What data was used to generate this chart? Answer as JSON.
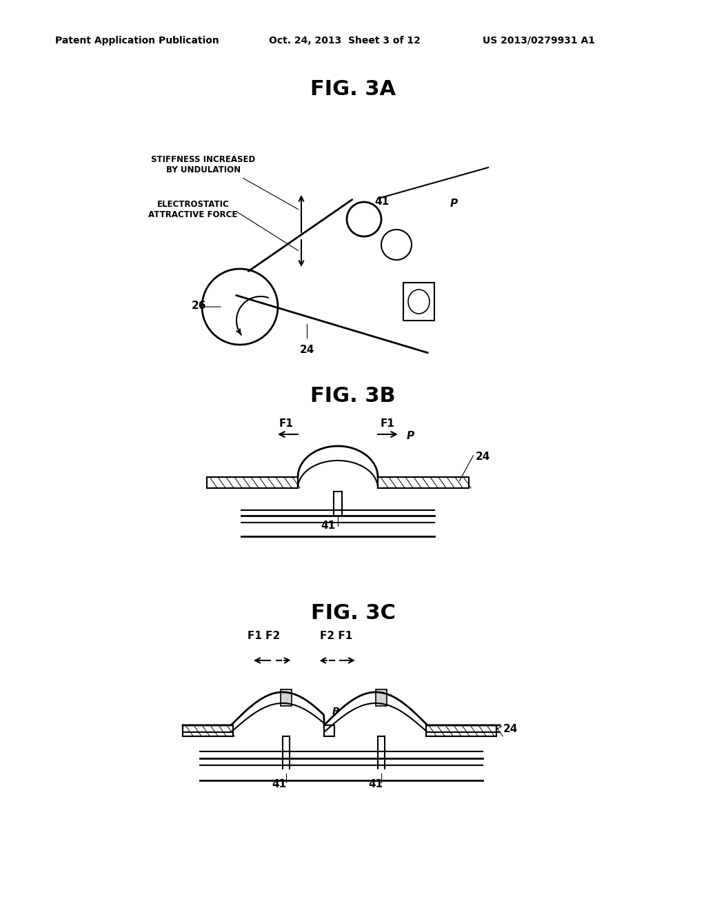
{
  "bg_color": "#ffffff",
  "header_left": "Patent Application Publication",
  "header_mid": "Oct. 24, 2013  Sheet 3 of 12",
  "header_right": "US 2013/0279931 A1",
  "fig3a_title": "FIG. 3A",
  "fig3b_title": "FIG. 3B",
  "fig3c_title": "FIG. 3C",
  "label_stiffness": "STIFFNESS INCREASED\nBY UNDULATION",
  "label_electrostatic": "ELECTROSTATIC\nATTRACTIVE FORCE",
  "label_26": "26",
  "label_24_3a": "24",
  "label_41_3a": "41",
  "label_P_3a": "P",
  "label_F1_left_3b": "F1",
  "label_F1_right_3b": "F1",
  "label_P_3b": "P",
  "label_24_3b": "24",
  "label_41_3b": "41",
  "label_F1F2_left": "F1 F2",
  "label_F2F1_right": "F2 F1",
  "label_P_3c": "P",
  "label_24_3c": "24",
  "label_41_left": "41",
  "label_41_right": "41"
}
